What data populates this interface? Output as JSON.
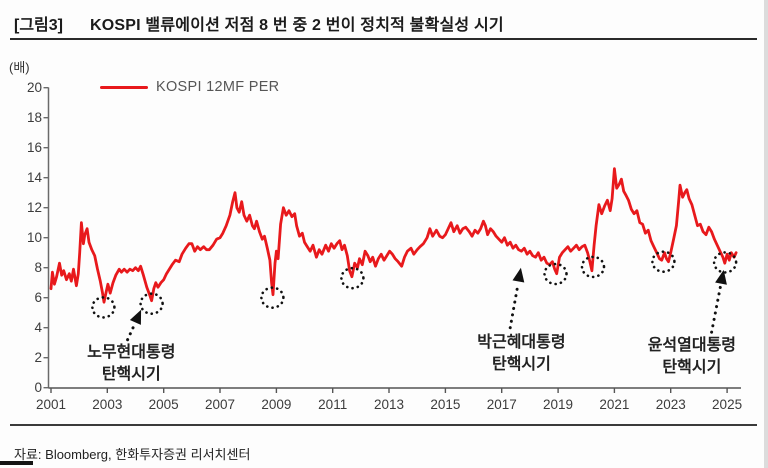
{
  "header": {
    "figure_label": "[그림3]",
    "title": "KOSPI 밸류에이션 저점 8 번 중 2 번이 정치적 불확실성 시기"
  },
  "footer": {
    "source": "자료: Bloomberg, 한화투자증권 리서치센터"
  },
  "chart_data": {
    "type": "line",
    "unit_label": "(배)",
    "legend_position": "top-left",
    "grid": false,
    "line_color": "#e8191c",
    "ylim": [
      0,
      20
    ],
    "y_ticks": [
      0,
      2,
      4,
      6,
      8,
      10,
      12,
      14,
      16,
      18,
      20
    ],
    "xlim": [
      2001,
      2025.45
    ],
    "x_ticks": [
      2001,
      2003,
      2005,
      2007,
      2009,
      2011,
      2013,
      2015,
      2017,
      2019,
      2021,
      2023,
      2025
    ],
    "series": [
      {
        "name": "KOSPI 12MF PER",
        "color": "#e8191c",
        "points": [
          [
            2001.0,
            6.6
          ],
          [
            2001.05,
            7.7
          ],
          [
            2001.12,
            6.9
          ],
          [
            2001.2,
            7.4
          ],
          [
            2001.3,
            8.3
          ],
          [
            2001.38,
            7.5
          ],
          [
            2001.45,
            7.8
          ],
          [
            2001.55,
            7.2
          ],
          [
            2001.65,
            7.6
          ],
          [
            2001.72,
            7.1
          ],
          [
            2001.8,
            7.9
          ],
          [
            2001.9,
            6.8
          ],
          [
            2001.97,
            7.6
          ],
          [
            2002.02,
            9.0
          ],
          [
            2002.08,
            11.0
          ],
          [
            2002.15,
            9.6
          ],
          [
            2002.2,
            10.2
          ],
          [
            2002.28,
            10.6
          ],
          [
            2002.35,
            9.7
          ],
          [
            2002.45,
            9.2
          ],
          [
            2002.55,
            8.8
          ],
          [
            2002.65,
            7.9
          ],
          [
            2002.75,
            7.1
          ],
          [
            2002.82,
            6.4
          ],
          [
            2002.88,
            5.7
          ],
          [
            2002.95,
            6.3
          ],
          [
            2003.02,
            6.9
          ],
          [
            2003.1,
            6.3
          ],
          [
            2003.2,
            7.0
          ],
          [
            2003.3,
            7.5
          ],
          [
            2003.42,
            7.9
          ],
          [
            2003.5,
            7.7
          ],
          [
            2003.6,
            7.9
          ],
          [
            2003.7,
            7.7
          ],
          [
            2003.8,
            7.9
          ],
          [
            2003.9,
            7.8
          ],
          [
            2004.0,
            8.0
          ],
          [
            2004.1,
            7.8
          ],
          [
            2004.18,
            8.1
          ],
          [
            2004.28,
            7.5
          ],
          [
            2004.4,
            6.7
          ],
          [
            2004.5,
            6.2
          ],
          [
            2004.57,
            5.8
          ],
          [
            2004.65,
            6.6
          ],
          [
            2004.72,
            7.0
          ],
          [
            2004.8,
            6.7
          ],
          [
            2004.9,
            7.0
          ],
          [
            2005.0,
            7.2
          ],
          [
            2005.1,
            7.6
          ],
          [
            2005.2,
            7.9
          ],
          [
            2005.3,
            8.2
          ],
          [
            2005.42,
            8.5
          ],
          [
            2005.55,
            8.4
          ],
          [
            2005.65,
            8.9
          ],
          [
            2005.78,
            9.3
          ],
          [
            2005.9,
            9.6
          ],
          [
            2006.0,
            9.6
          ],
          [
            2006.1,
            9.1
          ],
          [
            2006.2,
            9.4
          ],
          [
            2006.3,
            9.2
          ],
          [
            2006.42,
            9.4
          ],
          [
            2006.52,
            9.2
          ],
          [
            2006.62,
            9.2
          ],
          [
            2006.75,
            9.5
          ],
          [
            2006.88,
            9.9
          ],
          [
            2007.0,
            10.0
          ],
          [
            2007.1,
            10.3
          ],
          [
            2007.22,
            10.8
          ],
          [
            2007.35,
            11.5
          ],
          [
            2007.45,
            12.4
          ],
          [
            2007.53,
            13.0
          ],
          [
            2007.6,
            12.0
          ],
          [
            2007.68,
            11.7
          ],
          [
            2007.77,
            12.4
          ],
          [
            2007.85,
            11.5
          ],
          [
            2007.95,
            11.1
          ],
          [
            2008.05,
            11.5
          ],
          [
            2008.15,
            10.8
          ],
          [
            2008.22,
            10.6
          ],
          [
            2008.3,
            11.1
          ],
          [
            2008.4,
            10.4
          ],
          [
            2008.5,
            9.9
          ],
          [
            2008.58,
            10.1
          ],
          [
            2008.68,
            9.3
          ],
          [
            2008.77,
            8.5
          ],
          [
            2008.83,
            7.0
          ],
          [
            2008.88,
            6.2
          ],
          [
            2008.95,
            8.3
          ],
          [
            2009.0,
            9.1
          ],
          [
            2009.06,
            8.6
          ],
          [
            2009.15,
            10.9
          ],
          [
            2009.25,
            12.0
          ],
          [
            2009.35,
            11.5
          ],
          [
            2009.45,
            11.8
          ],
          [
            2009.55,
            11.4
          ],
          [
            2009.65,
            11.6
          ],
          [
            2009.72,
            10.8
          ],
          [
            2009.82,
            10.1
          ],
          [
            2009.92,
            10.3
          ],
          [
            2010.0,
            9.7
          ],
          [
            2010.1,
            9.4
          ],
          [
            2010.2,
            9.1
          ],
          [
            2010.3,
            9.5
          ],
          [
            2010.42,
            8.7
          ],
          [
            2010.52,
            9.2
          ],
          [
            2010.62,
            8.9
          ],
          [
            2010.75,
            9.5
          ],
          [
            2010.85,
            9.1
          ],
          [
            2010.95,
            9.6
          ],
          [
            2011.05,
            9.3
          ],
          [
            2011.15,
            9.6
          ],
          [
            2011.25,
            9.8
          ],
          [
            2011.33,
            9.2
          ],
          [
            2011.42,
            9.5
          ],
          [
            2011.52,
            8.8
          ],
          [
            2011.6,
            7.8
          ],
          [
            2011.68,
            7.4
          ],
          [
            2011.78,
            8.3
          ],
          [
            2011.88,
            8.0
          ],
          [
            2011.95,
            8.6
          ],
          [
            2012.05,
            8.2
          ],
          [
            2012.15,
            9.1
          ],
          [
            2012.25,
            8.8
          ],
          [
            2012.33,
            8.4
          ],
          [
            2012.42,
            8.7
          ],
          [
            2012.52,
            8.1
          ],
          [
            2012.62,
            8.6
          ],
          [
            2012.72,
            8.9
          ],
          [
            2012.82,
            8.5
          ],
          [
            2012.92,
            8.8
          ],
          [
            2013.02,
            9.1
          ],
          [
            2013.12,
            8.9
          ],
          [
            2013.22,
            8.6
          ],
          [
            2013.32,
            8.4
          ],
          [
            2013.45,
            8.1
          ],
          [
            2013.55,
            8.7
          ],
          [
            2013.65,
            9.1
          ],
          [
            2013.78,
            9.3
          ],
          [
            2013.88,
            8.9
          ],
          [
            2014.0,
            9.2
          ],
          [
            2014.1,
            9.4
          ],
          [
            2014.22,
            9.6
          ],
          [
            2014.35,
            10.0
          ],
          [
            2014.45,
            10.6
          ],
          [
            2014.55,
            10.1
          ],
          [
            2014.68,
            10.5
          ],
          [
            2014.8,
            10.1
          ],
          [
            2014.9,
            10.0
          ],
          [
            2015.0,
            10.2
          ],
          [
            2015.1,
            10.6
          ],
          [
            2015.2,
            11.0
          ],
          [
            2015.3,
            10.4
          ],
          [
            2015.42,
            10.8
          ],
          [
            2015.52,
            10.3
          ],
          [
            2015.62,
            10.6
          ],
          [
            2015.72,
            10.7
          ],
          [
            2015.85,
            10.4
          ],
          [
            2015.95,
            10.1
          ],
          [
            2016.05,
            10.5
          ],
          [
            2016.15,
            10.3
          ],
          [
            2016.25,
            10.6
          ],
          [
            2016.35,
            11.1
          ],
          [
            2016.42,
            10.8
          ],
          [
            2016.5,
            10.2
          ],
          [
            2016.6,
            10.6
          ],
          [
            2016.7,
            10.4
          ],
          [
            2016.8,
            10.1
          ],
          [
            2016.9,
            9.9
          ],
          [
            2017.0,
            9.7
          ],
          [
            2017.1,
            10.0
          ],
          [
            2017.2,
            9.5
          ],
          [
            2017.3,
            9.7
          ],
          [
            2017.4,
            9.3
          ],
          [
            2017.5,
            9.5
          ],
          [
            2017.6,
            9.2
          ],
          [
            2017.7,
            9.1
          ],
          [
            2017.8,
            9.3
          ],
          [
            2017.9,
            8.9
          ],
          [
            2018.0,
            9.1
          ],
          [
            2018.1,
            8.8
          ],
          [
            2018.2,
            8.7
          ],
          [
            2018.3,
            9.0
          ],
          [
            2018.4,
            8.5
          ],
          [
            2018.5,
            8.7
          ],
          [
            2018.6,
            8.3
          ],
          [
            2018.7,
            8.2
          ],
          [
            2018.8,
            8.4
          ],
          [
            2018.88,
            7.9
          ],
          [
            2018.95,
            7.6
          ],
          [
            2019.05,
            8.7
          ],
          [
            2019.15,
            9.0
          ],
          [
            2019.25,
            9.2
          ],
          [
            2019.35,
            9.4
          ],
          [
            2019.45,
            9.1
          ],
          [
            2019.55,
            9.3
          ],
          [
            2019.65,
            9.5
          ],
          [
            2019.75,
            9.2
          ],
          [
            2019.85,
            9.4
          ],
          [
            2019.95,
            9.5
          ],
          [
            2020.05,
            9.0
          ],
          [
            2020.13,
            8.4
          ],
          [
            2020.2,
            7.8
          ],
          [
            2020.28,
            9.5
          ],
          [
            2020.35,
            10.8
          ],
          [
            2020.45,
            12.2
          ],
          [
            2020.55,
            11.6
          ],
          [
            2020.65,
            12.1
          ],
          [
            2020.75,
            12.5
          ],
          [
            2020.85,
            11.8
          ],
          [
            2020.92,
            12.6
          ],
          [
            2021.0,
            14.6
          ],
          [
            2021.08,
            13.3
          ],
          [
            2021.18,
            13.6
          ],
          [
            2021.25,
            13.9
          ],
          [
            2021.33,
            13.1
          ],
          [
            2021.42,
            12.8
          ],
          [
            2021.5,
            12.5
          ],
          [
            2021.6,
            11.9
          ],
          [
            2021.7,
            11.6
          ],
          [
            2021.8,
            11.8
          ],
          [
            2021.9,
            11.0
          ],
          [
            2022.0,
            10.9
          ],
          [
            2022.1,
            10.3
          ],
          [
            2022.2,
            10.5
          ],
          [
            2022.3,
            9.8
          ],
          [
            2022.4,
            9.4
          ],
          [
            2022.5,
            9.0
          ],
          [
            2022.6,
            8.6
          ],
          [
            2022.68,
            8.5
          ],
          [
            2022.78,
            9.0
          ],
          [
            2022.85,
            8.6
          ],
          [
            2022.92,
            8.4
          ],
          [
            2023.0,
            9.0
          ],
          [
            2023.1,
            9.9
          ],
          [
            2023.2,
            10.8
          ],
          [
            2023.28,
            12.4
          ],
          [
            2023.33,
            13.5
          ],
          [
            2023.42,
            12.7
          ],
          [
            2023.5,
            13.0
          ],
          [
            2023.57,
            13.2
          ],
          [
            2023.65,
            12.6
          ],
          [
            2023.75,
            12.2
          ],
          [
            2023.85,
            11.5
          ],
          [
            2023.95,
            10.8
          ],
          [
            2024.05,
            10.9
          ],
          [
            2024.15,
            10.4
          ],
          [
            2024.25,
            10.2
          ],
          [
            2024.35,
            10.7
          ],
          [
            2024.45,
            10.4
          ],
          [
            2024.55,
            9.9
          ],
          [
            2024.65,
            9.5
          ],
          [
            2024.75,
            9.1
          ],
          [
            2024.85,
            8.7
          ],
          [
            2024.92,
            8.3
          ],
          [
            2025.0,
            8.9
          ],
          [
            2025.08,
            8.5
          ],
          [
            2025.15,
            9.0
          ],
          [
            2025.25,
            8.7
          ],
          [
            2025.32,
            9.0
          ]
        ]
      }
    ],
    "lows": [
      {
        "year": 2002.86,
        "per": 5.35
      },
      {
        "year": 2004.57,
        "per": 5.6
      },
      {
        "year": 2008.86,
        "per": 6.0
      },
      {
        "year": 2011.7,
        "per": 7.3
      },
      {
        "year": 2018.91,
        "per": 7.58
      },
      {
        "year": 2020.24,
        "per": 8.05
      },
      {
        "year": 2022.74,
        "per": 8.4
      },
      {
        "year": 2024.93,
        "per": 8.35
      }
    ],
    "annotations": [
      {
        "lines": [
          "노무현대통령",
          "탄핵시기"
        ],
        "text": {
          "year": 2003.85,
          "per": 2.3
        },
        "arrow": {
          "tail": {
            "year": 2003.72,
            "per": 3.2
          },
          "tip": {
            "year": 2004.2,
            "per": 5.2
          }
        }
      },
      {
        "lines": [
          "박근혜대통령",
          "탄핵시기"
        ],
        "text": {
          "year": 2017.7,
          "per": 2.95
        },
        "arrow": {
          "tail": {
            "year": 2017.3,
            "per": 4.0
          },
          "tip": {
            "year": 2017.68,
            "per": 8.0
          }
        }
      },
      {
        "lines": [
          "윤석열대통령",
          "탄핵시기"
        ],
        "text": {
          "year": 2023.75,
          "per": 2.75
        },
        "arrow": {
          "tail": {
            "year": 2024.45,
            "per": 3.7
          },
          "tip": {
            "year": 2024.88,
            "per": 7.85
          }
        }
      }
    ]
  }
}
